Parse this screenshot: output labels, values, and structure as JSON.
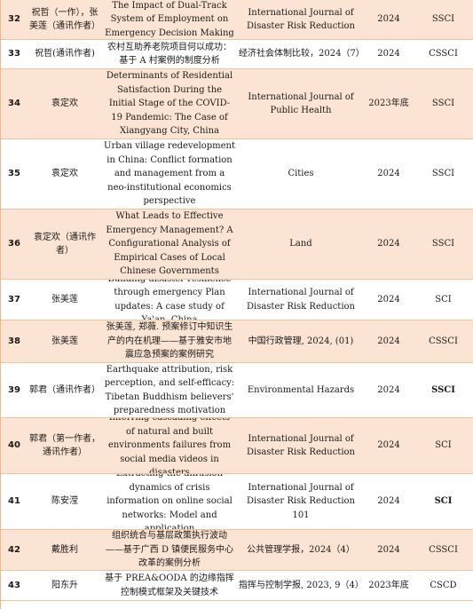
{
  "rows": [
    {
      "no": "32",
      "author": "祝哲（一作），张美莲（通讯作者）",
      "title": "The Impact of Dual-Track System of Employment on Emergency Decision Making",
      "journal": "International Journal of Disaster Risk Reduction",
      "year": "2024",
      "index": "SSCI"
    },
    {
      "no": "33",
      "author": "祝哲(通讯作者)",
      "title": "农村互助养老院项目何以成功：基于 A 村案例的制度分析",
      "journal": "经济社会体制比较，2024（7）",
      "year": "2024",
      "index": "CSSCI"
    },
    {
      "no": "34",
      "author": "袁定欢",
      "title": "Determinants of Residential Satisfaction During the Initial Stage of the COVID-19 Pandemic: The Case of Xiangyang City, China",
      "journal": "International Journal of Public Health",
      "year": "2023年底",
      "index": "SSCI"
    },
    {
      "no": "35",
      "author": "袁定欢",
      "title": "Urban village redevelopment in China: Conflict formation and management from a neo-institutional economics perspective",
      "journal": "Cities",
      "year": "2024",
      "index": "SSCI"
    },
    {
      "no": "36",
      "author": "袁定欢（通讯作者）",
      "title": "What Leads to Effective Emergency Management? A Configurational Analysis of Empirical Cases of Local Chinese Governments",
      "journal": "Land",
      "year": "2024",
      "index": "SSCI"
    },
    {
      "no": "37",
      "author": "张美莲",
      "title": "Building disaster resilience through emergency Plan updates: A case study of Ya'an, China",
      "journal": "International Journal of Disaster Risk Reduction",
      "year": "2024",
      "index": "SCI"
    },
    {
      "no": "38",
      "author": "张美莲",
      "title": "张美莲, 郑薇. 预案修订中知识生产的内在机理——基于雅安市地震应急预案的案例研究",
      "journal": "中国行政管理, 2024, (01)",
      "year": "2024",
      "index": "CSSCI"
    },
    {
      "no": "39",
      "author": "郭君（通讯作者）",
      "title": "Earthquake attribution, risk perception, and self-efficacy: Tibetan Buddhism believers' preparedness motivation",
      "journal": "Environmental Hazards",
      "year": "2024",
      "index": "SSCI"
    },
    {
      "no": "40",
      "author": "郭君（第一作者，通讯作者）",
      "title": "Inferring cascading effects of natural and built environments failures from social media videos in disasters",
      "journal": "International Journal of Disaster Risk Reduction",
      "year": "2024",
      "index": "SCI"
    },
    {
      "no": "41",
      "author": "陈安滢",
      "title": "Extracting the diffusion dynamics of crisis information on online social networks: Model and application",
      "journal": "International Journal of Disaster Risk Reduction 101",
      "year": "2024",
      "index": "SCI"
    },
    {
      "no": "42",
      "author": "戴胜利",
      "title": "组织统合与基层政策执行波动——基于广西 D 镇便民服务中心改革的案例分析",
      "journal": "公共管理学报，2024（4）",
      "year": "2024",
      "index": "CSSCI"
    },
    {
      "no": "43",
      "author": "阳东升",
      "title": "基于 PREA&OODA 的边缘指挥控制模式框架及关键技术",
      "journal": "指挥与控制学报, 2023, 9（4）",
      "year": "2023年底",
      "index": "CSCD"
    }
  ]
}
